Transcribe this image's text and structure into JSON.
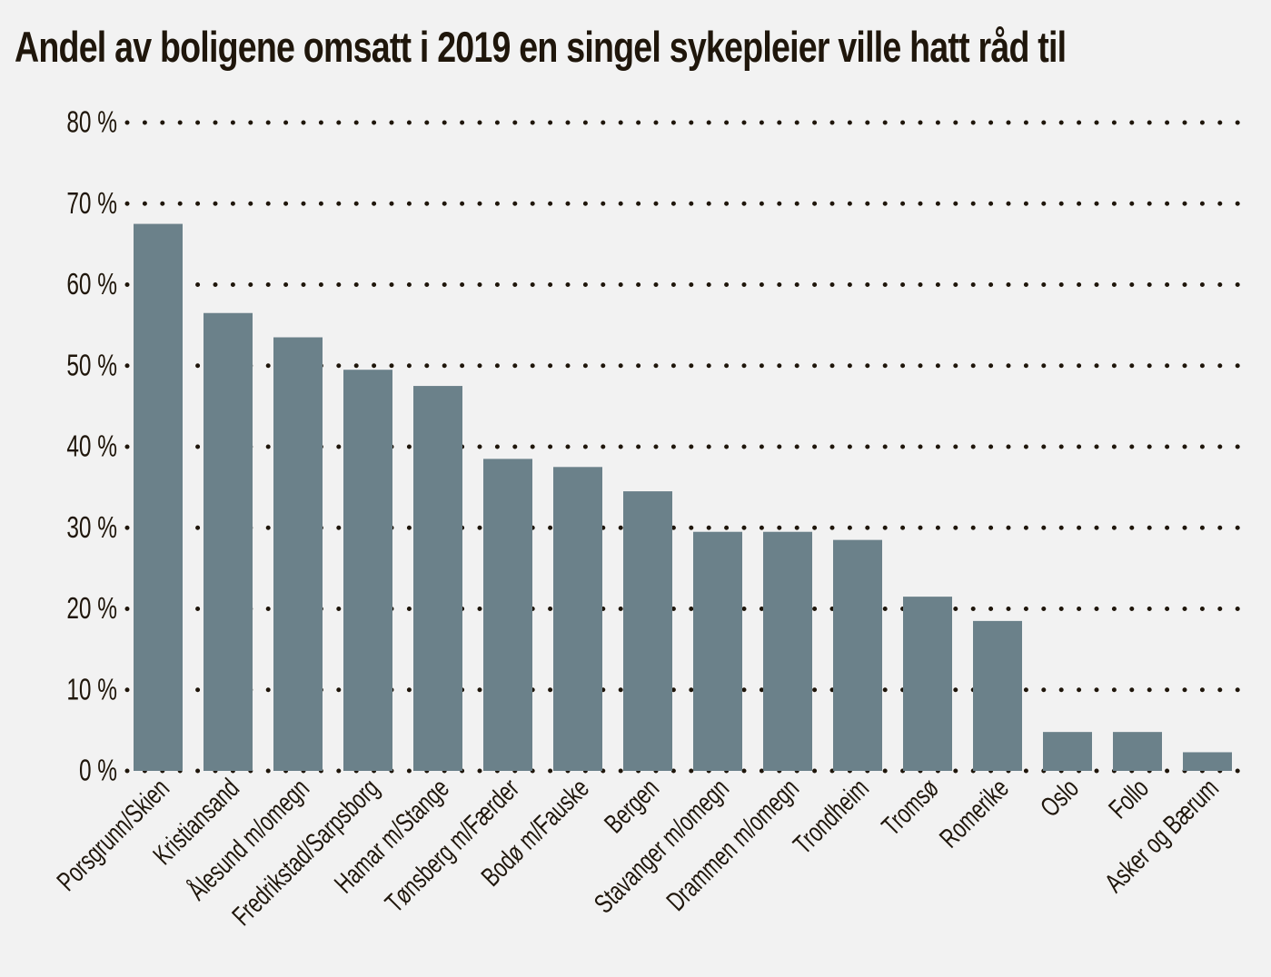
{
  "chart_data": {
    "type": "bar",
    "title": "Andel av boligene omsatt i 2019 en singel sykepleier ville hatt råd til",
    "xlabel": "",
    "ylabel": "",
    "ylim": [
      0,
      80
    ],
    "yticks": [
      0,
      10,
      20,
      30,
      40,
      50,
      60,
      70,
      80
    ],
    "ytick_labels": [
      "0 %",
      "10 %",
      "20 %",
      "30 %",
      "40 %",
      "50 %",
      "60 %",
      "70 %",
      "80 %"
    ],
    "grid": true,
    "categories": [
      "Porsgrunn/Skien",
      "Kristiansand",
      "Ålesund m/omegn",
      "Fredrikstad/Sarpsborg",
      "Hamar m/Stange",
      "Tønsberg m/Færder",
      "Bodø m/Fauske",
      "Bergen",
      "Stavanger m/omegn",
      "Drammen m/omegn",
      "Trondheim",
      "Tromsø",
      "Romerike",
      "Oslo",
      "Follo",
      "Asker og Bærum"
    ],
    "values": [
      67.5,
      56.5,
      53.5,
      49.5,
      47.5,
      38.5,
      37.5,
      34.5,
      29.5,
      29.5,
      28.5,
      21.5,
      18.5,
      4.8,
      4.8,
      2.3
    ],
    "colors": {
      "bar": "#6b818a",
      "grid": "#1f160b",
      "text": "#1f160b",
      "background": "#f2f2f2"
    }
  }
}
